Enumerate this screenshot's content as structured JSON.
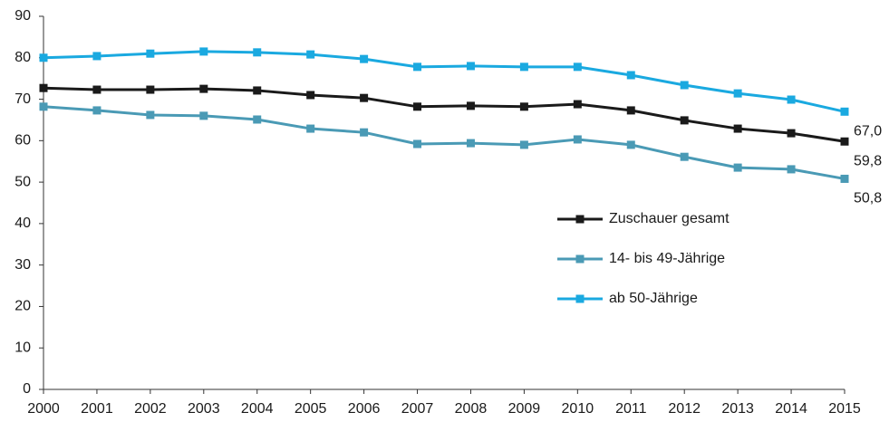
{
  "chart_data": {
    "type": "line",
    "x": [
      2000,
      2001,
      2002,
      2003,
      2004,
      2005,
      2006,
      2007,
      2008,
      2009,
      2010,
      2011,
      2012,
      2013,
      2014,
      2015
    ],
    "xlim": [
      2000,
      2015
    ],
    "xticks": [
      2000,
      2001,
      2002,
      2003,
      2004,
      2005,
      2006,
      2007,
      2008,
      2009,
      2010,
      2011,
      2012,
      2013,
      2014,
      2015
    ],
    "ylim": [
      0,
      90
    ],
    "yticks": [
      0,
      10,
      20,
      30,
      40,
      50,
      60,
      70,
      80,
      90
    ],
    "grid": false,
    "series": [
      {
        "name": "Zuschauer gesamt",
        "color": "#1a1a1a",
        "values": [
          72.7,
          72.3,
          72.3,
          72.5,
          72.1,
          71.0,
          70.3,
          68.2,
          68.4,
          68.2,
          68.8,
          67.3,
          64.9,
          62.9,
          61.8,
          59.8
        ],
        "value_labels": [
          null,
          null,
          null,
          null,
          null,
          null,
          null,
          null,
          null,
          null,
          null,
          null,
          null,
          null,
          null,
          "59,8"
        ]
      },
      {
        "name": "14- bis 49-Jährige",
        "color": "#4a9ab5",
        "values": [
          68.2,
          67.3,
          66.2,
          66.0,
          65.1,
          62.9,
          62.0,
          59.2,
          59.4,
          59.0,
          60.3,
          59.0,
          56.1,
          53.5,
          53.1,
          50.8
        ],
        "value_labels": [
          null,
          null,
          null,
          null,
          null,
          null,
          null,
          null,
          null,
          null,
          null,
          null,
          null,
          null,
          null,
          "50,8"
        ]
      },
      {
        "name": "ab 50-Jährige",
        "color": "#1aa9e0",
        "values": [
          80.0,
          80.4,
          81.0,
          81.5,
          81.3,
          80.8,
          79.7,
          77.8,
          78.0,
          77.8,
          77.8,
          75.8,
          73.4,
          71.4,
          69.9,
          67.0
        ],
        "value_labels": [
          null,
          null,
          null,
          null,
          null,
          null,
          null,
          null,
          null,
          null,
          null,
          null,
          null,
          null,
          null,
          "67,0"
        ]
      }
    ]
  }
}
